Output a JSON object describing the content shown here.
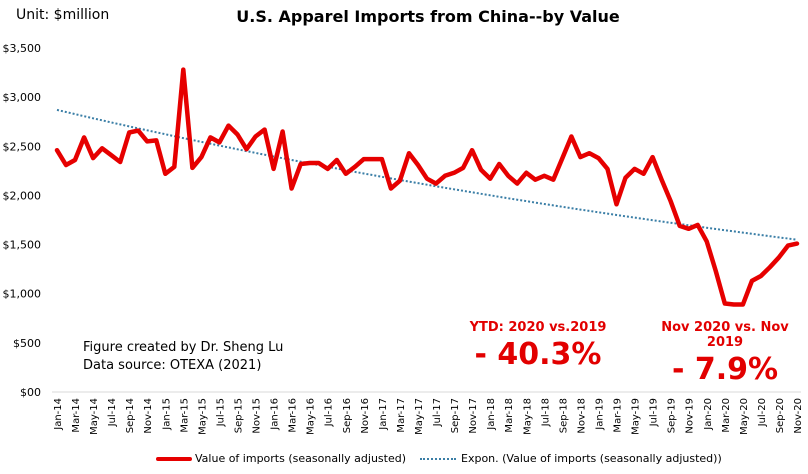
{
  "unit_label": "Unit: $million",
  "credit": {
    "line1": "Figure created by Dr. Sheng Lu",
    "line2": "Data source: OTEXA (2021)"
  },
  "callouts": [
    {
      "label": "YTD: 2020  vs.2019",
      "value": "- 40.3%"
    },
    {
      "label": "Nov 2020  vs. Nov 2019",
      "value": "- 7.9%"
    }
  ],
  "colors": {
    "series_line": "#e60000",
    "trendline": "#3a7ea6",
    "callout_text": "#e20000",
    "axis_line": "#d9d9d9"
  },
  "chart_data": {
    "type": "line",
    "title": "U.S. Apparel Imports from China--by Value",
    "xlabel": "",
    "ylabel": "",
    "ylim": [
      0,
      3500
    ],
    "yticks": [
      0,
      500,
      1000,
      1500,
      2000,
      2500,
      3000,
      3500
    ],
    "ytick_labels": [
      "$00",
      "$500",
      "$1,000",
      "$1,500",
      "$2,000",
      "$2,500",
      "$3,000",
      "$3,500"
    ],
    "grid": false,
    "legend_position": "bottom",
    "x": [
      "Jan-14",
      "Feb-14",
      "Mar-14",
      "Apr-14",
      "May-14",
      "Jun-14",
      "Jul-14",
      "Aug-14",
      "Sep-14",
      "Oct-14",
      "Nov-14",
      "Dec-14",
      "Jan-15",
      "Feb-15",
      "Mar-15",
      "Apr-15",
      "May-15",
      "Jun-15",
      "Jul-15",
      "Aug-15",
      "Sep-15",
      "Oct-15",
      "Nov-15",
      "Dec-15",
      "Jan-16",
      "Feb-16",
      "Mar-16",
      "Apr-16",
      "May-16",
      "Jun-16",
      "Jul-16",
      "Aug-16",
      "Sep-16",
      "Oct-16",
      "Nov-16",
      "Dec-16",
      "Jan-17",
      "Feb-17",
      "Mar-17",
      "Apr-17",
      "May-17",
      "Jun-17",
      "Jul-17",
      "Aug-17",
      "Sep-17",
      "Oct-17",
      "Nov-17",
      "Dec-17",
      "Jan-18",
      "Feb-18",
      "Mar-18",
      "Apr-18",
      "May-18",
      "Jun-18",
      "Jul-18",
      "Aug-18",
      "Sep-18",
      "Oct-18",
      "Nov-18",
      "Dec-18",
      "Jan-19",
      "Feb-19",
      "Mar-19",
      "Apr-19",
      "May-19",
      "Jun-19",
      "Jul-19",
      "Aug-19",
      "Sep-19",
      "Oct-19",
      "Nov-19",
      "Dec-19",
      "Jan-20",
      "Feb-20",
      "Mar-20",
      "Apr-20",
      "May-20",
      "Jun-20",
      "Jul-20",
      "Aug-20",
      "Sep-20",
      "Oct-20",
      "Nov-20"
    ],
    "tick_labels": [
      "Jan-14",
      "Mar-14",
      "May-14",
      "Jul-14",
      "Sep-14",
      "Nov-14",
      "Jan-15",
      "Mar-15",
      "May-15",
      "Jul-15",
      "Sep-15",
      "Nov-15",
      "Jan-16",
      "Mar-16",
      "May-16",
      "Jul-16",
      "Sep-16",
      "Nov-16",
      "Jan-17",
      "Mar-17",
      "May-17",
      "Jul-17",
      "Sep-17",
      "Nov-17",
      "Jan-18",
      "Mar-18",
      "May-18",
      "Jul-18",
      "Sep-18",
      "Nov-18",
      "Jan-19",
      "Mar-19",
      "May-19",
      "Jul-19",
      "Sep-19",
      "Nov-19",
      "Jan-20",
      "Mar-20",
      "May-20",
      "Jul-20",
      "Sep-20",
      "Nov-20"
    ],
    "series": [
      {
        "name": "Value of imports (seasonally adjusted)",
        "style": "solid",
        "values": [
          2460,
          2310,
          2360,
          2590,
          2380,
          2480,
          2410,
          2340,
          2640,
          2660,
          2550,
          2560,
          2220,
          2290,
          3280,
          2280,
          2390,
          2590,
          2540,
          2710,
          2620,
          2470,
          2600,
          2670,
          2270,
          2650,
          2070,
          2320,
          2330,
          2330,
          2270,
          2360,
          2220,
          2290,
          2370,
          2370,
          2370,
          2070,
          2150,
          2430,
          2310,
          2170,
          2120,
          2200,
          2230,
          2280,
          2460,
          2260,
          2170,
          2320,
          2200,
          2120,
          2230,
          2160,
          2200,
          2160,
          2380,
          2600,
          2390,
          2430,
          2380,
          2270,
          1910,
          2180,
          2270,
          2220,
          2390,
          2160,
          1940,
          1690,
          1660,
          1700,
          1530,
          1230,
          900,
          890,
          890,
          1130,
          1180,
          1270,
          1370,
          1490,
          1510
        ]
      },
      {
        "name": "Expon. (Value of imports (seasonally adjusted))",
        "style": "dotted",
        "trend": "exponential",
        "start_value": 2870,
        "end_value": 1550
      }
    ]
  }
}
